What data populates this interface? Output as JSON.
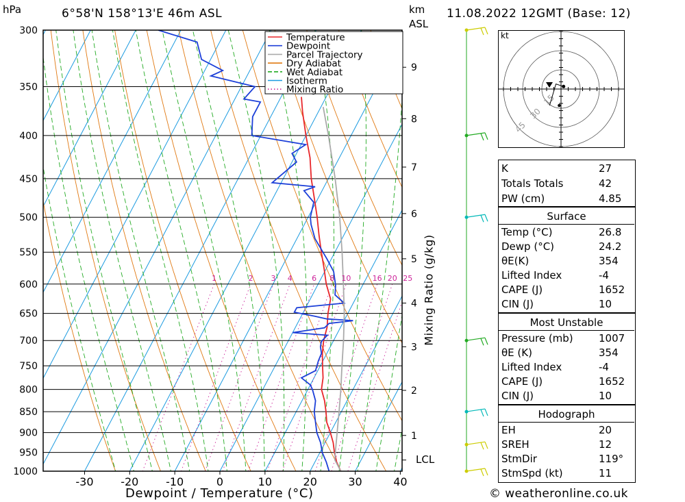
{
  "header": {
    "location": "6°58'N  158°13'E  46m  ASL",
    "datetime": "11.08.2022  12GMT  (Base: 12)",
    "hpa_label": "hPa",
    "km_label": "km",
    "asl_label": "ASL"
  },
  "footer": {
    "credit": "© weatheronline.co.uk"
  },
  "chart_data": {
    "type": "line",
    "subtype": "skew-T log-P diagram",
    "xlabel": "Dewpoint / Temperature (°C)",
    "right_axis_label": "Mixing Ratio (g/kg)",
    "x_ticks": [
      -30,
      -20,
      -10,
      0,
      10,
      20,
      30,
      40
    ],
    "pressure_ticks": [
      300,
      350,
      400,
      450,
      500,
      550,
      600,
      650,
      700,
      750,
      800,
      850,
      900,
      950,
      1000
    ],
    "km_ticks": [
      {
        "label": "1",
        "p": 907
      },
      {
        "label": "2",
        "p": 802
      },
      {
        "label": "3",
        "p": 712
      },
      {
        "label": "4",
        "p": 632
      },
      {
        "label": "5",
        "p": 560
      },
      {
        "label": "6",
        "p": 495
      },
      {
        "label": "7",
        "p": 436
      },
      {
        "label": "8",
        "p": 382
      },
      {
        "label": "9",
        "p": 332
      }
    ],
    "lcl": {
      "label": "LCL",
      "p": 970
    },
    "mixing_ratio_labels": [
      "1",
      "2",
      "3",
      "4",
      "6",
      "8",
      "10",
      "16",
      "20",
      "25"
    ],
    "mixing_ratio_values": [
      1,
      2,
      3,
      4,
      6,
      8,
      10,
      16,
      20,
      25
    ],
    "mixing_ratio_label_pressure": 600,
    "legend": {
      "placement": "top-right of plot",
      "entries": [
        {
          "name": "Temperature",
          "color": "#e8262a"
        },
        {
          "name": "Dewpoint",
          "color": "#1c3fd8"
        },
        {
          "name": "Parcel Trajectory",
          "color": "#aaaaaa"
        },
        {
          "name": "Dry Adiabat",
          "color": "#e07810"
        },
        {
          "name": "Wet Adiabat",
          "color": "#22aa22"
        },
        {
          "name": "Isotherm",
          "color": "#1a9ae0"
        },
        {
          "name": "Mixing Ratio",
          "color": "#cc2299"
        }
      ]
    },
    "series": [
      {
        "name": "Temperature",
        "color": "#e8262a",
        "points": [
          [
            1000,
            26.8
          ],
          [
            975,
            24.8
          ],
          [
            950,
            23.2
          ],
          [
            925,
            21.8
          ],
          [
            900,
            20.0
          ],
          [
            875,
            18.0
          ],
          [
            850,
            16.6
          ],
          [
            825,
            15.0
          ],
          [
            800,
            13.0
          ],
          [
            775,
            12.0
          ],
          [
            750,
            10.5
          ],
          [
            725,
            9.0
          ],
          [
            700,
            7.8
          ],
          [
            675,
            7.0
          ],
          [
            650,
            5.6
          ],
          [
            625,
            4.5
          ],
          [
            600,
            1.8
          ],
          [
            575,
            -0.5
          ],
          [
            550,
            -3.0
          ],
          [
            525,
            -5.5
          ],
          [
            500,
            -8.0
          ],
          [
            475,
            -10.8
          ],
          [
            450,
            -13.8
          ],
          [
            425,
            -16.5
          ],
          [
            400,
            -20.0
          ],
          [
            375,
            -23.5
          ],
          [
            360,
            -25.5
          ]
        ]
      },
      {
        "name": "Dewpoint",
        "color": "#1c3fd8",
        "points": [
          [
            1000,
            24.2
          ],
          [
            975,
            22.5
          ],
          [
            950,
            20.5
          ],
          [
            925,
            19.0
          ],
          [
            900,
            17.0
          ],
          [
            875,
            15.5
          ],
          [
            850,
            14.0
          ],
          [
            825,
            13.0
          ],
          [
            800,
            11.0
          ],
          [
            790,
            10.0
          ],
          [
            775,
            7.2
          ],
          [
            760,
            9.5
          ],
          [
            740,
            9.0
          ],
          [
            725,
            8.8
          ],
          [
            712,
            7.8
          ],
          [
            702,
            7.4
          ],
          [
            690,
            8.0
          ],
          [
            685,
            0.0
          ],
          [
            676,
            6.5
          ],
          [
            668,
            7.0
          ],
          [
            663,
            12.0
          ],
          [
            660,
            6.0
          ],
          [
            655,
            3.0
          ],
          [
            648,
            -2.0
          ],
          [
            640,
            -2.0
          ],
          [
            632,
            8.0
          ],
          [
            618,
            5.0
          ],
          [
            602,
            4.0
          ],
          [
            580,
            2.0
          ],
          [
            560,
            -1.0
          ],
          [
            530,
            -6.0
          ],
          [
            510,
            -8.5
          ],
          [
            500,
            -9.5
          ],
          [
            480,
            -10.5
          ],
          [
            465,
            -14.0
          ],
          [
            460,
            -12.0
          ],
          [
            455,
            -22.0
          ],
          [
            430,
            -19.0
          ],
          [
            420,
            -21.0
          ],
          [
            410,
            -19.0
          ],
          [
            400,
            -32.0
          ],
          [
            380,
            -34.0
          ],
          [
            365,
            -34.0
          ],
          [
            362,
            -38.0
          ],
          [
            350,
            -37.0
          ],
          [
            340,
            -48.0
          ],
          [
            335,
            -46.0
          ],
          [
            325,
            -52.0
          ],
          [
            310,
            -55.0
          ],
          [
            300,
            -65.0
          ]
        ]
      },
      {
        "name": "Parcel Trajectory",
        "color": "#aaaaaa",
        "points": [
          [
            1000,
            26.8
          ],
          [
            970,
            24.2
          ],
          [
            950,
            23.4
          ],
          [
            900,
            21.5
          ],
          [
            850,
            19.5
          ],
          [
            800,
            17.3
          ],
          [
            750,
            14.8
          ],
          [
            700,
            12.2
          ],
          [
            650,
            9.2
          ],
          [
            600,
            5.6
          ],
          [
            550,
            1.6
          ],
          [
            500,
            -3.0
          ],
          [
            450,
            -8.5
          ],
          [
            400,
            -15.0
          ],
          [
            370,
            -19.5
          ]
        ]
      }
    ],
    "wind_barbs": [
      {
        "p": 1000,
        "color": "#cccc00"
      },
      {
        "p": 930,
        "color": "#cccc00"
      },
      {
        "p": 850,
        "color": "#00b8b8"
      },
      {
        "p": 700,
        "color": "#22aa22"
      },
      {
        "p": 500,
        "color": "#00b8b8"
      },
      {
        "p": 400,
        "color": "#22aa22"
      },
      {
        "p": 300,
        "color": "#cccc00"
      }
    ],
    "hodograph": {
      "unit_label": "kt",
      "ring_labels": [
        "15",
        "30",
        "45"
      ],
      "points": [
        [
          -9,
          -13
        ],
        [
          -4,
          4
        ],
        [
          2,
          2
        ]
      ]
    }
  },
  "stats_table_1": [
    {
      "label": "K",
      "value": "27"
    },
    {
      "label": "Totals Totals",
      "value": "42"
    },
    {
      "label": "PW (cm)",
      "value": "4.85"
    }
  ],
  "surface": {
    "title": "Surface",
    "rows": [
      {
        "label": "Temp (°C)",
        "value": "26.8"
      },
      {
        "label": "Dewp (°C)",
        "value": "24.2"
      },
      {
        "label": "θE(K)",
        "value": "354"
      },
      {
        "label": "Lifted Index",
        "value": "-4"
      },
      {
        "label": "CAPE (J)",
        "value": "1652"
      },
      {
        "label": "CIN (J)",
        "value": "10"
      }
    ]
  },
  "most_unstable": {
    "title": "Most Unstable",
    "rows": [
      {
        "label": "Pressure (mb)",
        "value": "1007"
      },
      {
        "label": "θE (K)",
        "value": "354"
      },
      {
        "label": "Lifted Index",
        "value": "-4"
      },
      {
        "label": "CAPE (J)",
        "value": "1652"
      },
      {
        "label": "CIN (J)",
        "value": "10"
      }
    ]
  },
  "hodograph_table": {
    "title": "Hodograph",
    "rows": [
      {
        "label": "EH",
        "value": "20"
      },
      {
        "label": "SREH",
        "value": "12"
      },
      {
        "label": "StmDir",
        "value": "119°"
      },
      {
        "label": "StmSpd (kt)",
        "value": "11"
      }
    ]
  }
}
